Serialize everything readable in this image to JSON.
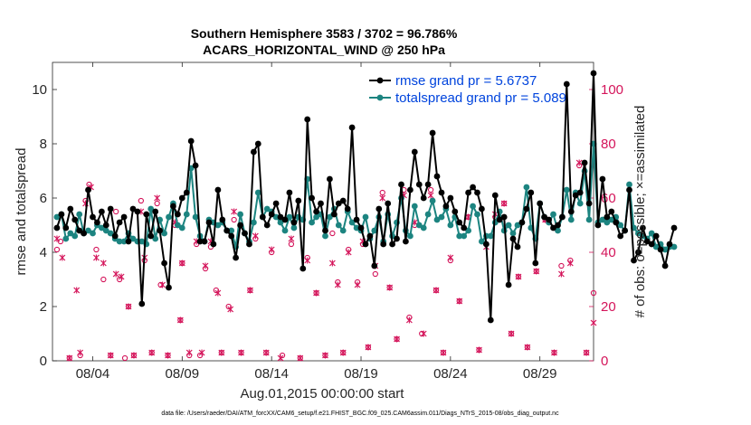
{
  "chart_data": {
    "type": "line",
    "title_line1": "Southern Hemisphere 3583 / 3702 = 96.786%",
    "title_line2": "ACARS_HORIZONTAL_WIND @ 250 hPa",
    "xlabel": "Aug.01,2015 00:00:00 start",
    "ylabel_left": "rmse and totalspread",
    "ylabel_right": "# of obs: o=possible; ×=assimilated",
    "footer": "data file: /Users/raeder/DAI/ATM_forcXX/CAM6_setup/f.e21.FHIST_BGC.f09_025.CAM6assim.011/Diags_NTrS_2015-08/obs_diag_output.nc",
    "x_ticks": [
      {
        "day": 4,
        "label": "08/04"
      },
      {
        "day": 9,
        "label": "08/09"
      },
      {
        "day": 14,
        "label": "08/14"
      },
      {
        "day": 19,
        "label": "08/19"
      },
      {
        "day": 24,
        "label": "08/24"
      },
      {
        "day": 29,
        "label": "08/29"
      }
    ],
    "xlim": [
      1.75,
      32.0
    ],
    "ylim_left": [
      0,
      11
    ],
    "yticks_left": [
      "0",
      "2",
      "4",
      "6",
      "8",
      "10"
    ],
    "ylim_right": [
      0,
      110
    ],
    "yticks_right": [
      "0",
      "20",
      "40",
      "60",
      "80",
      "100"
    ],
    "grid": false,
    "legend_position": "top-right",
    "series": [
      {
        "name": "rmse grand pr = 5.6737",
        "color": "#000000",
        "x_start": 2.0,
        "x_step": 0.25,
        "values": [
          4.9,
          5.4,
          4.9,
          5.6,
          5.2,
          4.8,
          4.7,
          6.3,
          5.3,
          5.1,
          5.5,
          5.0,
          5.6,
          4.6,
          5.1,
          5.3,
          4.4,
          5.6,
          5.5,
          2.1,
          5.4,
          4.6,
          5.5,
          4.8,
          3.6,
          2.7,
          5.7,
          5.4,
          6.0,
          6.2,
          8.1,
          7.2,
          4.4,
          4.4,
          5.1,
          4.3,
          6.3,
          5.2,
          4.8,
          4.6,
          3.8,
          5.0,
          4.7,
          4.3,
          7.7,
          8.0,
          5.3,
          5.0,
          5.4,
          5.8,
          5.3,
          5.2,
          6.2,
          5.1,
          5.9,
          3.4,
          8.9,
          6.0,
          5.5,
          5.8,
          4.8,
          6.7,
          5.4,
          5.8,
          5.9,
          5.6,
          8.6,
          5.2,
          4.9,
          4.3,
          4.6,
          3.5,
          5.6,
          4.3,
          5.8,
          4.3,
          4.5,
          6.5,
          4.4,
          6.3,
          7.7,
          6.5,
          6.0,
          6.5,
          8.4,
          6.8,
          6.2,
          5.7,
          6.0,
          5.5,
          5.1,
          4.9,
          6.2,
          6.4,
          6.2,
          5.6,
          4.3,
          1.5,
          6.1,
          5.2,
          5.3,
          2.8,
          4.5,
          4.2,
          5.1,
          5.6,
          6.2,
          3.6,
          5.8,
          5.3,
          5.2,
          4.9,
          5.0,
          5.3,
          10.2,
          5.5,
          6.1,
          6.2,
          7.3,
          5.8,
          10.6,
          5.0,
          6.7,
          5.3,
          5.5,
          5.1,
          4.6,
          4.8,
          6.3,
          3.7,
          4.0,
          4.9,
          4.4,
          4.3,
          4.6,
          4.1,
          3.5,
          4.3,
          4.9
        ]
      },
      {
        "name": "totalspread grand pr = 5.089",
        "color": "#1c8480",
        "x_start": 2.0,
        "x_step": 0.25,
        "values": [
          5.3,
          5.4,
          4.5,
          4.7,
          4.6,
          5.4,
          4.7,
          4.8,
          4.7,
          5.0,
          4.9,
          4.8,
          4.7,
          4.5,
          4.4,
          4.4,
          4.7,
          4.5,
          4.4,
          4.4,
          4.3,
          5.6,
          4.5,
          5.2,
          4.7,
          5.3,
          5.8,
          5.0,
          4.9,
          5.4,
          7.1,
          5.3,
          4.6,
          4.4,
          5.2,
          5.1,
          5.0,
          5.1,
          4.8,
          4.8,
          4.2,
          5.4,
          4.7,
          4.4,
          5.1,
          6.2,
          5.3,
          5.6,
          5.5,
          5.3,
          5.1,
          4.8,
          5.3,
          4.9,
          5.3,
          5.2,
          6.7,
          5.1,
          5.3,
          5.4,
          4.6,
          5.3,
          5.6,
          5.0,
          4.8,
          5.5,
          5.1,
          4.9,
          4.8,
          5.3,
          4.5,
          4.8,
          5.3,
          4.4,
          5.4,
          4.6,
          5.1,
          6.0,
          4.8,
          4.6,
          5.7,
          5.0,
          4.9,
          5.4,
          5.9,
          5.2,
          5.3,
          5.6,
          5.0,
          5.3,
          4.6,
          4.6,
          4.8,
          5.7,
          5.4,
          4.4,
          4.6,
          4.6,
          5.1,
          5.5,
          4.8,
          5.0,
          4.7,
          5.0,
          5.1,
          6.4,
          4.9,
          4.5,
          5.8,
          5.3,
          5.1,
          5.4,
          4.8,
          5.3,
          6.3,
          5.2,
          6.2,
          5.8,
          7.0,
          5.2,
          8.0,
          5.1,
          5.2,
          5.1,
          5.2,
          5.3,
          5.0,
          4.8,
          6.5,
          4.9,
          4.7,
          4.6,
          4.5,
          4.7,
          4.2,
          4.3,
          4.1,
          4.2,
          4.2
        ]
      }
    ],
    "obs_possible": {
      "marker": "o",
      "color": "#d4145a",
      "points": [
        [
          2.0,
          41
        ],
        [
          2.2,
          44
        ],
        [
          2.7,
          1
        ],
        [
          3.3,
          2
        ],
        [
          3.6,
          59
        ],
        [
          3.8,
          65
        ],
        [
          4.2,
          41
        ],
        [
          4.6,
          30
        ],
        [
          5.0,
          2
        ],
        [
          5.3,
          55
        ],
        [
          5.5,
          30
        ],
        [
          5.8,
          1
        ],
        [
          6.0,
          20
        ],
        [
          6.3,
          2
        ],
        [
          6.7,
          59
        ],
        [
          6.9,
          37
        ],
        [
          7.3,
          3
        ],
        [
          7.6,
          58
        ],
        [
          7.8,
          28
        ],
        [
          8.2,
          2
        ],
        [
          8.6,
          50
        ],
        [
          8.9,
          15
        ],
        [
          9.0,
          36
        ],
        [
          9.4,
          2
        ],
        [
          9.8,
          43
        ],
        [
          10.0,
          2
        ],
        [
          10.3,
          34
        ],
        [
          10.6,
          42
        ],
        [
          10.9,
          26
        ],
        [
          11.2,
          3
        ],
        [
          11.6,
          20
        ],
        [
          11.9,
          52
        ],
        [
          12.3,
          3
        ],
        [
          12.8,
          26
        ],
        [
          13.1,
          45
        ],
        [
          13.7,
          3
        ],
        [
          14.0,
          40
        ],
        [
          14.6,
          2
        ],
        [
          15.1,
          43
        ],
        [
          15.6,
          1
        ],
        [
          16.0,
          38
        ],
        [
          16.5,
          25
        ],
        [
          17.0,
          2
        ],
        [
          17.4,
          47
        ],
        [
          17.7,
          29
        ],
        [
          18.0,
          3
        ],
        [
          18.3,
          41
        ],
        [
          18.8,
          29
        ],
        [
          19.1,
          43
        ],
        [
          19.4,
          5
        ],
        [
          19.8,
          32
        ],
        [
          20.2,
          62
        ],
        [
          20.6,
          27
        ],
        [
          21.0,
          8
        ],
        [
          21.4,
          63
        ],
        [
          21.7,
          16
        ],
        [
          22.0,
          50
        ],
        [
          22.4,
          10
        ],
        [
          22.9,
          63
        ],
        [
          23.2,
          26
        ],
        [
          23.6,
          3
        ],
        [
          24.0,
          37
        ],
        [
          24.5,
          22
        ],
        [
          25.0,
          53
        ],
        [
          25.6,
          4
        ],
        [
          26.0,
          43
        ],
        [
          26.5,
          53
        ],
        [
          27.0,
          58
        ],
        [
          27.4,
          10
        ],
        [
          27.8,
          31
        ],
        [
          28.3,
          5
        ],
        [
          28.8,
          33
        ],
        [
          29.3,
          52
        ],
        [
          29.8,
          3
        ],
        [
          30.2,
          35
        ],
        [
          30.7,
          37
        ],
        [
          31.2,
          72
        ],
        [
          31.6,
          3
        ],
        [
          32.0,
          25
        ]
      ]
    },
    "obs_assimilated": {
      "marker": "x",
      "color": "#d4145a",
      "points": [
        [
          2.0,
          45
        ],
        [
          2.3,
          38
        ],
        [
          2.7,
          1
        ],
        [
          3.1,
          26
        ],
        [
          3.3,
          3
        ],
        [
          3.6,
          58
        ],
        [
          3.9,
          64
        ],
        [
          4.2,
          38
        ],
        [
          4.6,
          36
        ],
        [
          5.0,
          2
        ],
        [
          5.3,
          32
        ],
        [
          5.6,
          31
        ],
        [
          6.0,
          20
        ],
        [
          6.3,
          2
        ],
        [
          6.7,
          55
        ],
        [
          6.9,
          38
        ],
        [
          7.3,
          3
        ],
        [
          7.6,
          60
        ],
        [
          7.9,
          28
        ],
        [
          8.2,
          2
        ],
        [
          8.6,
          51
        ],
        [
          8.9,
          15
        ],
        [
          9.0,
          36
        ],
        [
          9.4,
          3
        ],
        [
          9.8,
          44
        ],
        [
          10.1,
          3
        ],
        [
          10.3,
          35
        ],
        [
          10.6,
          44
        ],
        [
          11.0,
          25
        ],
        [
          11.2,
          3
        ],
        [
          11.7,
          19
        ],
        [
          11.9,
          55
        ],
        [
          12.3,
          3
        ],
        [
          12.8,
          26
        ],
        [
          13.1,
          46
        ],
        [
          13.7,
          3
        ],
        [
          14.0,
          41
        ],
        [
          14.5,
          1
        ],
        [
          15.1,
          45
        ],
        [
          15.6,
          1
        ],
        [
          16.0,
          37
        ],
        [
          16.5,
          25
        ],
        [
          17.0,
          2
        ],
        [
          17.4,
          36
        ],
        [
          17.7,
          28
        ],
        [
          18.0,
          3
        ],
        [
          18.3,
          40
        ],
        [
          18.8,
          28
        ],
        [
          19.1,
          44
        ],
        [
          19.4,
          5
        ],
        [
          19.8,
          35
        ],
        [
          20.2,
          60
        ],
        [
          20.6,
          27
        ],
        [
          21.0,
          8
        ],
        [
          21.4,
          61
        ],
        [
          21.7,
          15
        ],
        [
          22.0,
          51
        ],
        [
          22.5,
          10
        ],
        [
          22.9,
          61
        ],
        [
          23.2,
          26
        ],
        [
          23.6,
          3
        ],
        [
          24.0,
          38
        ],
        [
          24.5,
          22
        ],
        [
          25.0,
          53
        ],
        [
          25.6,
          4
        ],
        [
          26.0,
          42
        ],
        [
          26.5,
          54
        ],
        [
          27.0,
          58
        ],
        [
          27.4,
          10
        ],
        [
          27.8,
          31
        ],
        [
          28.3,
          5
        ],
        [
          28.8,
          33
        ],
        [
          29.3,
          52
        ],
        [
          29.8,
          3
        ],
        [
          30.2,
          32
        ],
        [
          30.7,
          36
        ],
        [
          31.2,
          73
        ],
        [
          31.6,
          3
        ],
        [
          32.0,
          14
        ]
      ]
    }
  }
}
